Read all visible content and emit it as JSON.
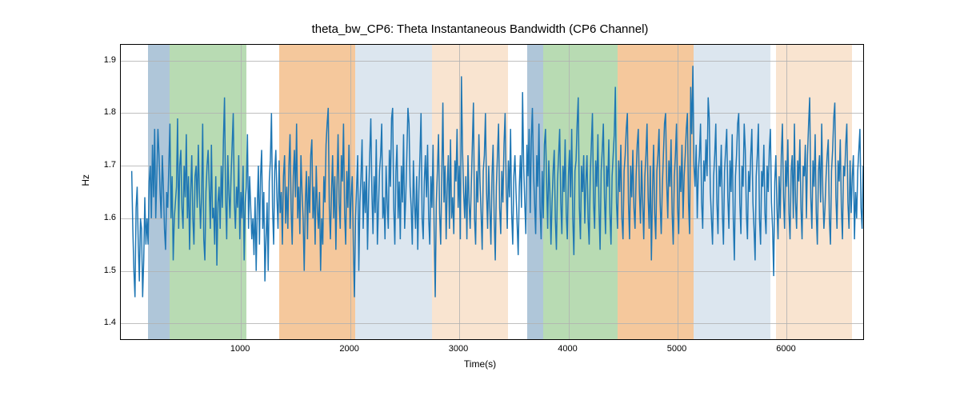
{
  "chart": {
    "type": "line",
    "title": "theta_bw_CP6: Theta Instantaneous Bandwidth (CP6 Channel)",
    "title_fontsize": 15,
    "xlabel": "Time(s)",
    "ylabel": "Hz",
    "label_fontsize": 12,
    "tick_fontsize": 11,
    "xlim": [
      -100,
      6700
    ],
    "ylim": [
      1.37,
      1.93
    ],
    "xticks": [
      1000,
      2000,
      3000,
      4000,
      5000,
      6000
    ],
    "yticks": [
      1.4,
      1.5,
      1.6,
      1.7,
      1.8,
      1.9
    ],
    "background_color": "#ffffff",
    "grid_color": "#b0b0b0",
    "line_color": "#1f77b4",
    "line_width": 1.5,
    "shaded_colors": {
      "blue": "#afc6d9",
      "green": "#b8dbb3",
      "orange": "#f5c89c",
      "lightblue": "#dce6ef",
      "lightorange": "#f9e4d0"
    },
    "shaded_regions": [
      {
        "start": 150,
        "end": 350,
        "color": "blue"
      },
      {
        "start": 350,
        "end": 1050,
        "color": "green"
      },
      {
        "start": 1350,
        "end": 2050,
        "color": "orange"
      },
      {
        "start": 2050,
        "end": 2750,
        "color": "lightblue"
      },
      {
        "start": 2750,
        "end": 3450,
        "color": "lightorange"
      },
      {
        "start": 3620,
        "end": 3770,
        "color": "blue"
      },
      {
        "start": 3770,
        "end": 4450,
        "color": "green"
      },
      {
        "start": 4450,
        "end": 5150,
        "color": "orange"
      },
      {
        "start": 5150,
        "end": 5850,
        "color": "lightblue"
      },
      {
        "start": 5900,
        "end": 6600,
        "color": "lightorange"
      }
    ],
    "x_step": 10,
    "y_values": [
      1.69,
      1.58,
      1.5,
      1.45,
      1.62,
      1.66,
      1.55,
      1.48,
      1.6,
      1.58,
      1.45,
      1.52,
      1.64,
      1.55,
      1.6,
      1.55,
      1.67,
      1.7,
      1.6,
      1.74,
      1.64,
      1.77,
      1.6,
      1.68,
      1.77,
      1.72,
      1.65,
      1.6,
      1.72,
      1.66,
      1.58,
      1.54,
      1.65,
      1.62,
      1.7,
      1.78,
      1.6,
      1.68,
      1.52,
      1.6,
      1.63,
      1.66,
      1.79,
      1.58,
      1.7,
      1.73,
      1.62,
      1.58,
      1.7,
      1.64,
      1.76,
      1.6,
      1.68,
      1.54,
      1.65,
      1.72,
      1.6,
      1.55,
      1.68,
      1.7,
      1.62,
      1.74,
      1.65,
      1.58,
      1.64,
      1.78,
      1.56,
      1.52,
      1.65,
      1.7,
      1.73,
      1.66,
      1.58,
      1.74,
      1.6,
      1.62,
      1.55,
      1.68,
      1.51,
      1.63,
      1.66,
      1.58,
      1.7,
      1.62,
      1.75,
      1.83,
      1.64,
      1.56,
      1.72,
      1.65,
      1.6,
      1.68,
      1.74,
      1.8,
      1.63,
      1.58,
      1.66,
      1.62,
      1.72,
      1.56,
      1.65,
      1.6,
      1.7,
      1.52,
      1.63,
      1.66,
      1.76,
      1.58,
      1.68,
      1.62,
      1.56,
      1.6,
      1.53,
      1.64,
      1.5,
      1.62,
      1.7,
      1.55,
      1.68,
      1.73,
      1.58,
      1.65,
      1.48,
      1.56,
      1.63,
      1.5,
      1.67,
      1.71,
      1.8,
      1.62,
      1.55,
      1.69,
      1.73,
      1.64,
      1.58,
      1.71,
      1.61,
      1.65,
      1.55,
      1.68,
      1.72,
      1.59,
      1.66,
      1.58,
      1.7,
      1.76,
      1.62,
      1.55,
      1.68,
      1.73,
      1.64,
      1.78,
      1.6,
      1.66,
      1.57,
      1.72,
      1.65,
      1.6,
      1.5,
      1.63,
      1.69,
      1.56,
      1.68,
      1.61,
      1.72,
      1.75,
      1.6,
      1.66,
      1.55,
      1.7,
      1.62,
      1.58,
      1.65,
      1.5,
      1.6,
      1.55,
      1.68,
      1.63,
      1.74,
      1.78,
      1.81,
      1.62,
      1.56,
      1.65,
      1.72,
      1.6,
      1.68,
      1.54,
      1.66,
      1.76,
      1.63,
      1.58,
      1.72,
      1.67,
      1.78,
      1.61,
      1.55,
      1.69,
      1.62,
      1.74,
      1.58,
      1.64,
      1.68,
      1.55,
      1.45,
      1.6,
      1.66,
      1.72,
      1.5,
      1.63,
      1.68,
      1.75,
      1.58,
      1.67,
      1.61,
      1.7,
      1.54,
      1.64,
      1.72,
      1.79,
      1.65,
      1.57,
      1.68,
      1.61,
      1.75,
      1.55,
      1.62,
      1.69,
      1.72,
      1.78,
      1.6,
      1.64,
      1.56,
      1.7,
      1.63,
      1.58,
      1.73,
      1.66,
      1.79,
      1.81,
      1.62,
      1.55,
      1.69,
      1.74,
      1.6,
      1.67,
      1.56,
      1.7,
      1.63,
      1.76,
      1.58,
      1.64,
      1.72,
      1.81,
      1.78,
      1.66,
      1.62,
      1.55,
      1.71,
      1.63,
      1.58,
      1.68,
      1.54,
      1.65,
      1.72,
      1.8,
      1.6,
      1.56,
      1.67,
      1.72,
      1.64,
      1.74,
      1.6,
      1.55,
      1.68,
      1.62,
      1.74,
      1.58,
      1.45,
      1.63,
      1.69,
      1.76,
      1.61,
      1.55,
      1.68,
      1.82,
      1.63,
      1.7,
      1.56,
      1.66,
      1.72,
      1.58,
      1.75,
      1.6,
      1.64,
      1.57,
      1.71,
      1.67,
      1.77,
      1.62,
      1.7,
      1.56,
      1.87,
      1.73,
      1.65,
      1.6,
      1.68,
      1.56,
      1.72,
      1.63,
      1.58,
      1.66,
      1.74,
      1.82,
      1.6,
      1.55,
      1.69,
      1.63,
      1.76,
      1.67,
      1.61,
      1.54,
      1.69,
      1.72,
      1.8,
      1.65,
      1.58,
      1.7,
      1.62,
      1.55,
      1.68,
      1.74,
      1.6,
      1.52,
      1.66,
      1.72,
      1.78,
      1.62,
      1.57,
      1.69,
      1.63,
      1.74,
      1.8,
      1.66,
      1.58,
      1.71,
      1.64,
      1.77,
      1.61,
      1.55,
      1.68,
      1.72,
      1.65,
      1.59,
      1.53,
      1.66,
      1.72,
      1.62,
      1.84,
      1.7,
      1.63,
      1.57,
      1.74,
      1.68,
      1.77,
      1.61,
      1.75,
      1.81,
      1.69,
      1.63,
      1.57,
      1.72,
      1.66,
      1.78,
      1.62,
      1.56,
      1.69,
      1.6,
      1.74,
      1.77,
      1.67,
      1.58,
      1.71,
      1.65,
      1.55,
      1.63,
      1.69,
      1.73,
      1.6,
      1.54,
      1.67,
      1.72,
      1.77,
      1.63,
      1.57,
      1.7,
      1.65,
      1.75,
      1.61,
      1.56,
      1.68,
      1.73,
      1.64,
      1.77,
      1.6,
      1.53,
      1.69,
      1.71,
      1.78,
      1.83,
      1.62,
      1.56,
      1.7,
      1.65,
      1.72,
      1.59,
      1.67,
      1.72,
      1.6,
      1.55,
      1.68,
      1.74,
      1.8,
      1.63,
      1.58,
      1.71,
      1.66,
      1.76,
      1.62,
      1.54,
      1.69,
      1.73,
      1.78,
      1.64,
      1.57,
      1.7,
      1.66,
      1.75,
      1.61,
      1.55,
      1.68,
      1.72,
      1.76,
      1.85,
      1.63,
      1.58,
      1.71,
      1.65,
      1.74,
      1.6,
      1.56,
      1.69,
      1.72,
      1.77,
      1.8,
      1.63,
      1.56,
      1.7,
      1.64,
      1.73,
      1.62,
      1.58,
      1.68,
      1.74,
      1.77,
      1.65,
      1.59,
      1.71,
      1.63,
      1.56,
      1.68,
      1.72,
      1.78,
      1.64,
      1.58,
      1.7,
      1.52,
      1.65,
      1.74,
      1.61,
      1.56,
      1.69,
      1.72,
      1.77,
      1.63,
      1.57,
      1.66,
      1.72,
      1.78,
      1.8,
      1.67,
      1.6,
      1.71,
      1.66,
      1.75,
      1.61,
      1.55,
      1.68,
      1.72,
      1.78,
      1.62,
      1.57,
      1.7,
      1.65,
      1.74,
      1.6,
      1.68,
      1.72,
      1.77,
      1.8,
      1.63,
      1.57,
      1.85,
      1.76,
      1.89,
      1.7,
      1.66,
      1.74,
      1.6,
      1.69,
      1.72,
      1.78,
      1.63,
      1.58,
      1.71,
      1.67,
      1.75,
      1.68,
      1.83,
      1.79,
      1.65,
      1.6,
      1.55,
      1.68,
      1.72,
      1.78,
      1.63,
      1.57,
      1.7,
      1.66,
      1.74,
      1.61,
      1.55,
      1.69,
      1.73,
      1.77,
      1.64,
      1.58,
      1.71,
      1.65,
      1.76,
      1.6,
      1.52,
      1.68,
      1.72,
      1.78,
      1.8,
      1.63,
      1.57,
      1.7,
      1.66,
      1.78,
      1.73,
      1.61,
      1.56,
      1.69,
      1.65,
      1.72,
      1.77,
      1.63,
      1.58,
      1.52,
      1.68,
      1.72,
      1.78,
      1.6,
      1.55,
      1.69,
      1.66,
      1.74,
      1.61,
      1.57,
      1.7,
      1.65,
      1.73,
      1.77,
      1.63,
      1.58,
      1.49,
      1.67,
      1.72,
      1.62,
      1.56,
      1.68,
      1.6,
      1.72,
      1.78,
      1.64,
      1.58,
      1.71,
      1.66,
      1.75,
      1.61,
      1.56,
      1.69,
      1.72,
      1.6,
      1.78,
      1.63,
      1.58,
      1.71,
      1.67,
      1.75,
      1.62,
      1.56,
      1.7,
      1.68,
      1.74,
      1.6,
      1.72,
      1.78,
      1.83,
      1.64,
      1.58,
      1.71,
      1.66,
      1.76,
      1.61,
      1.55,
      1.69,
      1.72,
      1.63,
      1.78,
      1.65,
      1.58,
      1.62,
      1.68,
      1.72,
      1.75,
      1.6,
      1.55,
      1.69,
      1.73,
      1.79,
      1.82,
      1.64,
      1.58,
      1.71,
      1.67,
      1.75,
      1.62,
      1.56,
      1.7,
      1.68,
      1.74,
      1.78,
      1.63,
      1.58,
      1.71,
      1.61,
      1.68,
      1.72,
      1.56,
      1.65,
      1.6,
      1.69,
      1.73,
      1.77,
      1.62,
      1.58,
      1.7,
      1.66,
      1.74,
      1.61,
      1.69,
      1.72,
      1.7,
      1.71,
      1.69,
      1.72
    ]
  }
}
